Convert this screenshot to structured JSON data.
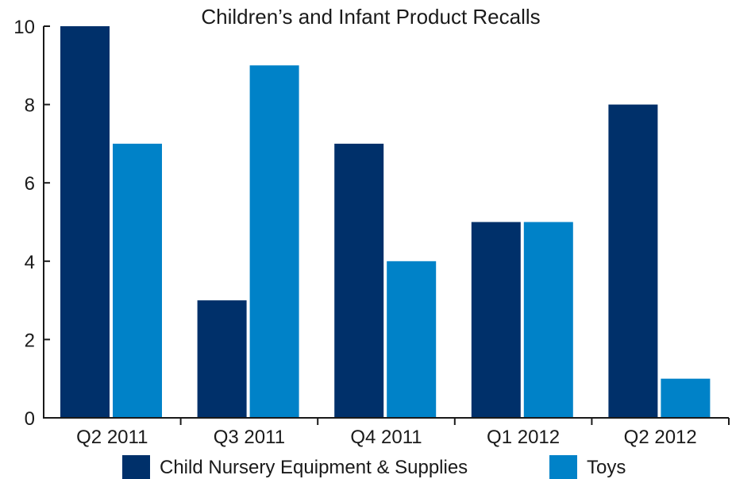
{
  "chart_data": {
    "type": "bar",
    "title": "Children’s and Infant Product Recalls",
    "xlabel": "",
    "ylabel": "",
    "categories": [
      "Q2 2011",
      "Q3 2011",
      "Q4 2011",
      "Q1 2012",
      "Q2 2012"
    ],
    "series": [
      {
        "name": "Child Nursery Equipment & Supplies",
        "color": "#00306a",
        "values": [
          10,
          3,
          7,
          5,
          8
        ]
      },
      {
        "name": "Toys",
        "color": "#0082c8",
        "values": [
          7,
          9,
          4,
          5,
          1
        ]
      }
    ],
    "ylim": [
      0,
      10
    ],
    "yticks": [
      0,
      2,
      4,
      6,
      8,
      10
    ],
    "grid": false,
    "legend_position": "bottom"
  }
}
